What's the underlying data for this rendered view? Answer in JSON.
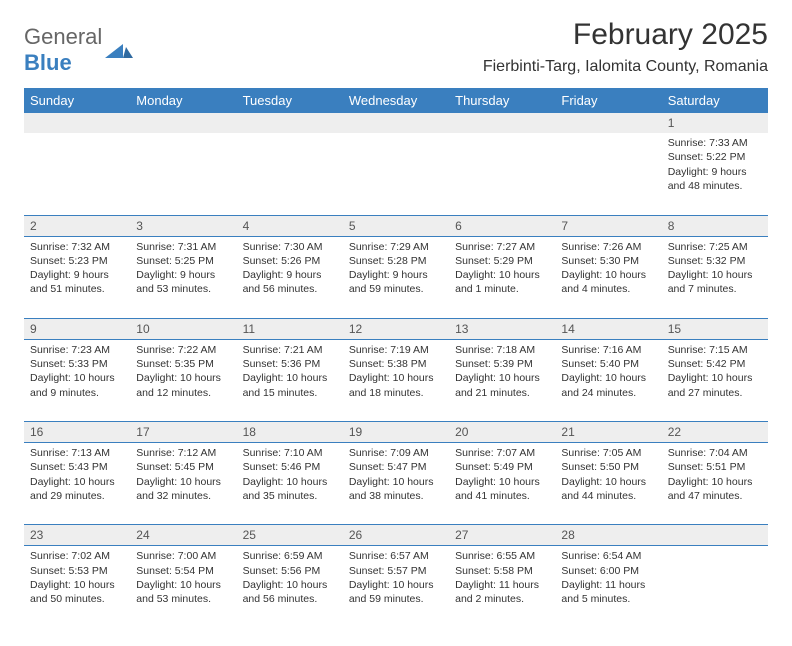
{
  "brand": {
    "general": "General",
    "blue": "Blue"
  },
  "title": "February 2025",
  "location": "Fierbinti-Targ, Ialomita County, Romania",
  "colors": {
    "header_bg": "#3a7fbf",
    "header_fg": "#ffffff",
    "row_alt_bg": "#eeeeee",
    "border": "#3a7fbf",
    "text": "#333333",
    "logo_gray": "#666666",
    "logo_blue": "#3a7fbf"
  },
  "weekdays": [
    "Sunday",
    "Monday",
    "Tuesday",
    "Wednesday",
    "Thursday",
    "Friday",
    "Saturday"
  ],
  "weeks": [
    [
      null,
      null,
      null,
      null,
      null,
      null,
      {
        "n": "1",
        "sr": "Sunrise: 7:33 AM",
        "ss": "Sunset: 5:22 PM",
        "dl": "Daylight: 9 hours and 48 minutes."
      }
    ],
    [
      {
        "n": "2",
        "sr": "Sunrise: 7:32 AM",
        "ss": "Sunset: 5:23 PM",
        "dl": "Daylight: 9 hours and 51 minutes."
      },
      {
        "n": "3",
        "sr": "Sunrise: 7:31 AM",
        "ss": "Sunset: 5:25 PM",
        "dl": "Daylight: 9 hours and 53 minutes."
      },
      {
        "n": "4",
        "sr": "Sunrise: 7:30 AM",
        "ss": "Sunset: 5:26 PM",
        "dl": "Daylight: 9 hours and 56 minutes."
      },
      {
        "n": "5",
        "sr": "Sunrise: 7:29 AM",
        "ss": "Sunset: 5:28 PM",
        "dl": "Daylight: 9 hours and 59 minutes."
      },
      {
        "n": "6",
        "sr": "Sunrise: 7:27 AM",
        "ss": "Sunset: 5:29 PM",
        "dl": "Daylight: 10 hours and 1 minute."
      },
      {
        "n": "7",
        "sr": "Sunrise: 7:26 AM",
        "ss": "Sunset: 5:30 PM",
        "dl": "Daylight: 10 hours and 4 minutes."
      },
      {
        "n": "8",
        "sr": "Sunrise: 7:25 AM",
        "ss": "Sunset: 5:32 PM",
        "dl": "Daylight: 10 hours and 7 minutes."
      }
    ],
    [
      {
        "n": "9",
        "sr": "Sunrise: 7:23 AM",
        "ss": "Sunset: 5:33 PM",
        "dl": "Daylight: 10 hours and 9 minutes."
      },
      {
        "n": "10",
        "sr": "Sunrise: 7:22 AM",
        "ss": "Sunset: 5:35 PM",
        "dl": "Daylight: 10 hours and 12 minutes."
      },
      {
        "n": "11",
        "sr": "Sunrise: 7:21 AM",
        "ss": "Sunset: 5:36 PM",
        "dl": "Daylight: 10 hours and 15 minutes."
      },
      {
        "n": "12",
        "sr": "Sunrise: 7:19 AM",
        "ss": "Sunset: 5:38 PM",
        "dl": "Daylight: 10 hours and 18 minutes."
      },
      {
        "n": "13",
        "sr": "Sunrise: 7:18 AM",
        "ss": "Sunset: 5:39 PM",
        "dl": "Daylight: 10 hours and 21 minutes."
      },
      {
        "n": "14",
        "sr": "Sunrise: 7:16 AM",
        "ss": "Sunset: 5:40 PM",
        "dl": "Daylight: 10 hours and 24 minutes."
      },
      {
        "n": "15",
        "sr": "Sunrise: 7:15 AM",
        "ss": "Sunset: 5:42 PM",
        "dl": "Daylight: 10 hours and 27 minutes."
      }
    ],
    [
      {
        "n": "16",
        "sr": "Sunrise: 7:13 AM",
        "ss": "Sunset: 5:43 PM",
        "dl": "Daylight: 10 hours and 29 minutes."
      },
      {
        "n": "17",
        "sr": "Sunrise: 7:12 AM",
        "ss": "Sunset: 5:45 PM",
        "dl": "Daylight: 10 hours and 32 minutes."
      },
      {
        "n": "18",
        "sr": "Sunrise: 7:10 AM",
        "ss": "Sunset: 5:46 PM",
        "dl": "Daylight: 10 hours and 35 minutes."
      },
      {
        "n": "19",
        "sr": "Sunrise: 7:09 AM",
        "ss": "Sunset: 5:47 PM",
        "dl": "Daylight: 10 hours and 38 minutes."
      },
      {
        "n": "20",
        "sr": "Sunrise: 7:07 AM",
        "ss": "Sunset: 5:49 PM",
        "dl": "Daylight: 10 hours and 41 minutes."
      },
      {
        "n": "21",
        "sr": "Sunrise: 7:05 AM",
        "ss": "Sunset: 5:50 PM",
        "dl": "Daylight: 10 hours and 44 minutes."
      },
      {
        "n": "22",
        "sr": "Sunrise: 7:04 AM",
        "ss": "Sunset: 5:51 PM",
        "dl": "Daylight: 10 hours and 47 minutes."
      }
    ],
    [
      {
        "n": "23",
        "sr": "Sunrise: 7:02 AM",
        "ss": "Sunset: 5:53 PM",
        "dl": "Daylight: 10 hours and 50 minutes."
      },
      {
        "n": "24",
        "sr": "Sunrise: 7:00 AM",
        "ss": "Sunset: 5:54 PM",
        "dl": "Daylight: 10 hours and 53 minutes."
      },
      {
        "n": "25",
        "sr": "Sunrise: 6:59 AM",
        "ss": "Sunset: 5:56 PM",
        "dl": "Daylight: 10 hours and 56 minutes."
      },
      {
        "n": "26",
        "sr": "Sunrise: 6:57 AM",
        "ss": "Sunset: 5:57 PM",
        "dl": "Daylight: 10 hours and 59 minutes."
      },
      {
        "n": "27",
        "sr": "Sunrise: 6:55 AM",
        "ss": "Sunset: 5:58 PM",
        "dl": "Daylight: 11 hours and 2 minutes."
      },
      {
        "n": "28",
        "sr": "Sunrise: 6:54 AM",
        "ss": "Sunset: 6:00 PM",
        "dl": "Daylight: 11 hours and 5 minutes."
      },
      null
    ]
  ]
}
